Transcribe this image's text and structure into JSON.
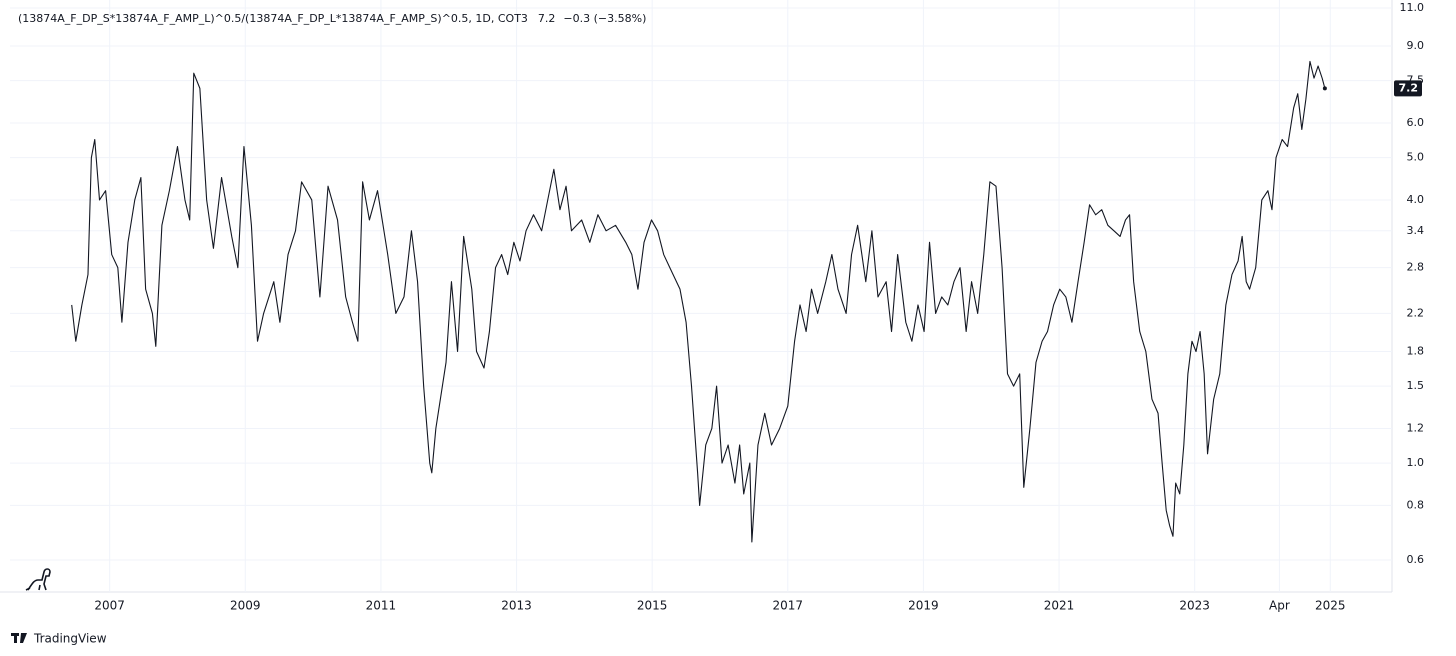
{
  "chart_data": {
    "type": "line",
    "title": "(13874A_F_DP_S*13874A_F_AMP_L)^0.5/(13874A_F_DP_L*13874A_F_AMP_S)^0.5, 1D, COT3",
    "change": "−0.3 (−3.58%)",
    "branding": "TradingView",
    "log_scale": true,
    "grid": true,
    "xlim": [
      2005.53,
      2025.91
    ],
    "ylim": [
      0.507,
      11.47
    ],
    "xticks": [
      2007,
      2009,
      2011,
      2013,
      2015,
      2017,
      2019,
      2021,
      2023,
      {
        "value": 2024.25,
        "label": "Apr"
      },
      2025
    ],
    "yticks": [
      0.6,
      0.8,
      {
        "value": 1,
        "label": "1.0"
      },
      1.2,
      1.5,
      1.8,
      2.2,
      2.8,
      3.4,
      {
        "value": 4,
        "label": "4.0"
      },
      {
        "value": 5,
        "label": "5.0"
      },
      {
        "value": 6,
        "label": "6.0"
      },
      7.5,
      {
        "value": 9,
        "label": "9.0"
      },
      {
        "value": 11,
        "label": "11.0"
      }
    ],
    "x": [
      2006.44,
      2006.5,
      2006.59,
      2006.68,
      2006.73,
      2006.78,
      2006.85,
      2006.94,
      2007.03,
      2007.12,
      2007.18,
      2007.27,
      2007.37,
      2007.46,
      2007.53,
      2007.63,
      2007.68,
      2007.77,
      2007.88,
      2008.0,
      2008.11,
      2008.18,
      2008.24,
      2008.33,
      2008.43,
      2008.53,
      2008.65,
      2008.8,
      2008.89,
      2008.98,
      2009.09,
      2009.18,
      2009.27,
      2009.42,
      2009.51,
      2009.63,
      2009.74,
      2009.83,
      2009.98,
      2010.1,
      2010.22,
      2010.36,
      2010.48,
      2010.58,
      2010.66,
      2010.73,
      2010.83,
      2010.95,
      2011.1,
      2011.22,
      2011.34,
      2011.45,
      2011.54,
      2011.63,
      2011.72,
      2011.75,
      2011.81,
      2011.96,
      2012.04,
      2012.13,
      2012.22,
      2012.34,
      2012.41,
      2012.52,
      2012.6,
      2012.69,
      2012.78,
      2012.87,
      2012.96,
      2013.05,
      2013.14,
      2013.25,
      2013.37,
      2013.46,
      2013.55,
      2013.64,
      2013.73,
      2013.81,
      2013.96,
      2014.08,
      2014.2,
      2014.32,
      2014.46,
      2014.61,
      2014.7,
      2014.79,
      2014.88,
      2014.99,
      2015.08,
      2015.17,
      2015.26,
      2015.41,
      2015.5,
      2015.58,
      2015.67,
      2015.7,
      2015.79,
      2015.88,
      2015.95,
      2016.03,
      2016.12,
      2016.22,
      2016.29,
      2016.35,
      2016.44,
      2016.47,
      2016.56,
      2016.66,
      2016.76,
      2016.88,
      2017.0,
      2017.1,
      2017.18,
      2017.27,
      2017.35,
      2017.44,
      2017.56,
      2017.65,
      2017.74,
      2017.86,
      2017.94,
      2018.03,
      2018.15,
      2018.24,
      2018.33,
      2018.45,
      2018.53,
      2018.62,
      2018.74,
      2018.83,
      2018.92,
      2019.01,
      2019.09,
      2019.18,
      2019.27,
      2019.36,
      2019.45,
      2019.54,
      2019.63,
      2019.71,
      2019.8,
      2019.89,
      2019.98,
      2020.07,
      2020.16,
      2020.24,
      2020.33,
      2020.42,
      2020.48,
      2020.57,
      2020.66,
      2020.75,
      2020.83,
      2020.92,
      2021.01,
      2021.1,
      2021.19,
      2021.28,
      2021.37,
      2021.45,
      2021.54,
      2021.63,
      2021.72,
      2021.81,
      2021.9,
      2021.98,
      2022.04,
      2022.1,
      2022.19,
      2022.28,
      2022.37,
      2022.46,
      2022.52,
      2022.58,
      2022.63,
      2022.68,
      2022.72,
      2022.78,
      2022.84,
      2022.9,
      2022.96,
      2023.02,
      2023.08,
      2023.14,
      2023.19,
      2023.28,
      2023.37,
      2023.46,
      2023.55,
      2023.64,
      2023.7,
      2023.76,
      2023.81,
      2023.9,
      2023.99,
      2024.08,
      2024.14,
      2024.2,
      2024.29,
      2024.37,
      2024.46,
      2024.52,
      2024.58,
      2024.64,
      2024.7,
      2024.76,
      2024.82,
      2024.88,
      2024.92
    ],
    "series": [
      {
        "color": "#131722",
        "values": [
          2.3,
          1.9,
          2.3,
          2.7,
          5.0,
          5.5,
          4.0,
          4.2,
          3.0,
          2.8,
          2.1,
          3.2,
          4.0,
          4.5,
          2.5,
          2.2,
          1.85,
          3.5,
          4.2,
          5.3,
          4.0,
          3.6,
          7.8,
          7.2,
          4.0,
          3.1,
          4.5,
          3.3,
          2.8,
          5.3,
          3.5,
          1.9,
          2.2,
          2.6,
          2.1,
          3.0,
          3.4,
          4.4,
          4.0,
          2.4,
          4.3,
          3.6,
          2.4,
          2.1,
          1.9,
          4.4,
          3.6,
          4.2,
          3.0,
          2.2,
          2.4,
          3.4,
          2.6,
          1.5,
          1.0,
          0.95,
          1.2,
          1.7,
          2.6,
          1.8,
          3.3,
          2.5,
          1.8,
          1.65,
          2.0,
          2.8,
          3.0,
          2.7,
          3.2,
          2.9,
          3.4,
          3.7,
          3.4,
          4.0,
          4.7,
          3.8,
          4.3,
          3.4,
          3.6,
          3.2,
          3.7,
          3.4,
          3.5,
          3.2,
          3.0,
          2.5,
          3.2,
          3.6,
          3.4,
          3.0,
          2.8,
          2.5,
          2.1,
          1.5,
          0.95,
          0.8,
          1.1,
          1.2,
          1.5,
          1.0,
          1.1,
          0.9,
          1.1,
          0.85,
          1.0,
          0.66,
          1.1,
          1.3,
          1.1,
          1.2,
          1.35,
          1.9,
          2.3,
          2.0,
          2.5,
          2.2,
          2.6,
          3.0,
          2.5,
          2.2,
          3.0,
          3.5,
          2.6,
          3.4,
          2.4,
          2.6,
          2.0,
          3.0,
          2.1,
          1.9,
          2.3,
          2.0,
          3.2,
          2.2,
          2.4,
          2.3,
          2.6,
          2.8,
          2.0,
          2.6,
          2.2,
          3.0,
          4.4,
          4.3,
          2.8,
          1.6,
          1.5,
          1.6,
          0.88,
          1.2,
          1.7,
          1.9,
          2.0,
          2.3,
          2.5,
          2.4,
          2.1,
          2.6,
          3.2,
          3.9,
          3.7,
          3.8,
          3.5,
          3.4,
          3.3,
          3.6,
          3.7,
          2.6,
          2.0,
          1.8,
          1.4,
          1.3,
          1.0,
          0.78,
          0.72,
          0.68,
          0.9,
          0.85,
          1.1,
          1.6,
          1.9,
          1.8,
          2.0,
          1.6,
          1.05,
          1.4,
          1.6,
          2.3,
          2.7,
          2.9,
          3.3,
          2.6,
          2.5,
          2.8,
          4.0,
          4.2,
          3.8,
          5.0,
          5.5,
          5.3,
          6.5,
          7.0,
          5.8,
          6.8,
          8.3,
          7.6,
          8.1,
          7.6,
          7.2
        ]
      }
    ]
  }
}
